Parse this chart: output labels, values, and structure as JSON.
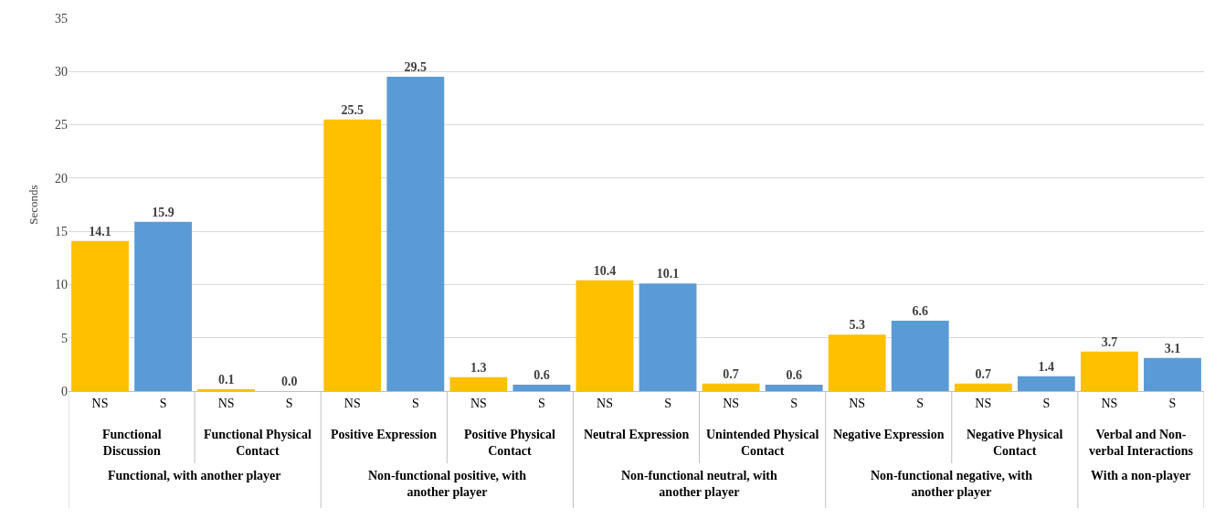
{
  "chart_data": {
    "type": "bar",
    "ylabel": "Seconds",
    "categories": [
      "NS",
      "S",
      "NS",
      "S",
      "NS",
      "S",
      "NS",
      "S",
      "NS",
      "S",
      "NS",
      "S",
      "NS",
      "S",
      "NS",
      "S",
      "NS",
      "S"
    ],
    "values": [
      14.1,
      15.9,
      0.1,
      0.0,
      25.5,
      29.5,
      1.3,
      0.6,
      10.4,
      10.1,
      0.7,
      0.6,
      5.3,
      6.6,
      0.7,
      1.4,
      3.7,
      3.1
    ],
    "value_labels": [
      "14.1",
      "15.9",
      "0.1",
      "0.0",
      "25.5",
      "29.5",
      "1.3",
      "0.6",
      "10.4",
      "10.1",
      "0.7",
      "0.6",
      "5.3",
      "6.6",
      "0.7",
      "1.4",
      "3.7",
      "3.1"
    ],
    "colors": [
      "#ffc000",
      "#5b9bd5",
      "#ffc000",
      "#5b9bd5",
      "#ffc000",
      "#5b9bd5",
      "#ffc000",
      "#5b9bd5",
      "#ffc000",
      "#5b9bd5",
      "#ffc000",
      "#5b9bd5",
      "#ffc000",
      "#5b9bd5",
      "#ffc000",
      "#5b9bd5",
      "#ffc000",
      "#5b9bd5"
    ],
    "annotations": [
      "Functional Discussion",
      "Functional Physical Contact",
      "Positive Expression",
      "Positive Physical Contact",
      "Neutral Expression",
      "Unintended Physical Contact",
      "Negative Expression",
      "Negative Physical Contact",
      "Verbal and Non-verbal Interactions",
      "Functional, with another player",
      "Non-functional positive, with another player",
      "Non-functional neutral, with another player",
      "Non-functional negative, with another player",
      "With a non-player"
    ],
    "ylim": [
      0,
      35
    ],
    "yticks": [
      0,
      5,
      10,
      15,
      20,
      25,
      30,
      35
    ],
    "grid": "y"
  }
}
